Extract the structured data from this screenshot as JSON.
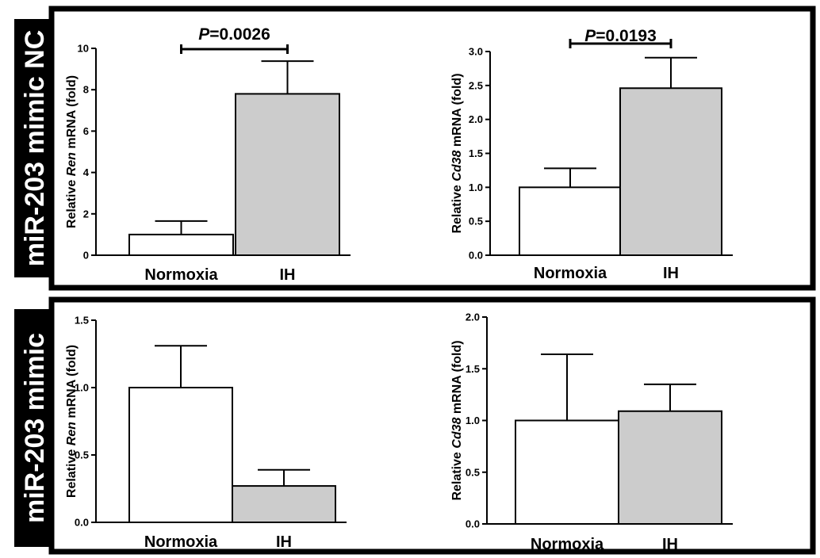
{
  "row_labels": [
    "miR-203 mimic NC",
    "miR-203 mimic"
  ],
  "colors": {
    "normoxia_fill": "#ffffff",
    "ih_fill": "#cccccc",
    "frame": "#000000",
    "label_bg": "#000000",
    "label_text": "#ffffff"
  },
  "chart_data": [
    {
      "type": "bar",
      "categories": [
        "Normoxia",
        "IH"
      ],
      "values": [
        1.0,
        7.8
      ],
      "errors": [
        0.65,
        1.58
      ],
      "ylabel": {
        "prefix": "Relative ",
        "gene": "Ren",
        "suffix": " mRNA (fold)"
      },
      "ylim": [
        0,
        10
      ],
      "yticks": [
        "0",
        "2",
        "4",
        "6",
        "8",
        "10"
      ],
      "significance": {
        "p_letter": "P",
        "p_value": "=0.0026"
      }
    },
    {
      "type": "bar",
      "categories": [
        "Normoxia",
        "IH"
      ],
      "values": [
        1.0,
        2.46
      ],
      "errors": [
        0.28,
        0.45
      ],
      "ylabel": {
        "prefix": "Relative ",
        "gene": "Cd38",
        "suffix": " mRNA (fold)"
      },
      "ylim": [
        0,
        3.0
      ],
      "yticks": [
        "0.0",
        "0.5",
        "1.0",
        "1.5",
        "2.0",
        "2.5",
        "3.0"
      ],
      "significance": {
        "p_letter": "P",
        "p_value": "=0.0193"
      }
    },
    {
      "type": "bar",
      "categories": [
        "Normoxia",
        "IH"
      ],
      "values": [
        1.0,
        0.27
      ],
      "errors": [
        0.31,
        0.12
      ],
      "ylabel": {
        "prefix": "Relative ",
        "gene": "Ren",
        "suffix": " mRNA (fold)"
      },
      "ylim": [
        0,
        1.5
      ],
      "yticks": [
        "0.0",
        "0.5",
        "1.0",
        "1.5"
      ],
      "significance": null
    },
    {
      "type": "bar",
      "categories": [
        "Normoxia",
        "IH"
      ],
      "values": [
        1.0,
        1.09
      ],
      "errors": [
        0.64,
        0.26
      ],
      "ylabel": {
        "prefix": "Relative ",
        "gene": "Cd38",
        "suffix": " mRNA (fold)"
      },
      "ylim": [
        0,
        2.0
      ],
      "yticks": [
        "0.0",
        "0.5",
        "1.0",
        "1.5",
        "2.0"
      ],
      "significance": null
    }
  ]
}
